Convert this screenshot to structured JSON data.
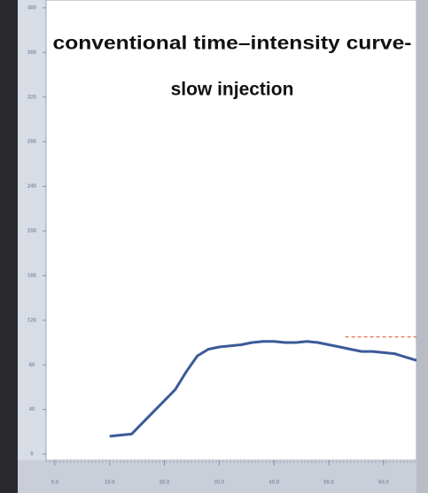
{
  "chart_data": {
    "type": "line",
    "title": [
      "conventional time–intensity curve-",
      "slow injection"
    ],
    "xlim": [
      -1.6,
      66
    ],
    "xticks": [
      {
        "value": 0,
        "label": "0.0"
      },
      {
        "value": 10,
        "label": "10.0"
      },
      {
        "value": 20,
        "label": "20.0"
      },
      {
        "value": 30,
        "label": "30.0"
      },
      {
        "value": 40,
        "label": "40.0"
      },
      {
        "value": 50,
        "label": "50.0"
      },
      {
        "value": 60,
        "label": "60.0"
      }
    ],
    "ylim": [
      -5.5,
      407
    ],
    "yticks": [
      0,
      40,
      80,
      120,
      160,
      200,
      240,
      280,
      320,
      360,
      400
    ],
    "series": [
      {
        "color": "#3b5a98",
        "x": [
          10,
          12,
          14,
          16,
          18,
          20,
          22,
          24,
          26,
          28,
          30,
          32,
          34,
          36,
          38,
          40,
          42,
          44,
          46,
          48,
          50,
          52,
          54,
          56,
          58,
          60,
          62,
          64,
          66
        ],
        "values": [
          16,
          17,
          18,
          28,
          38,
          48,
          58,
          74,
          88,
          94,
          96,
          97,
          98,
          100,
          101,
          101,
          100,
          100,
          101,
          100,
          98,
          96,
          94,
          92,
          92,
          91,
          90,
          87,
          84
        ]
      },
      {
        "color": "#e0603c",
        "dashed": true,
        "x": [
          53,
          66
        ],
        "values": [
          105,
          105
        ]
      }
    ]
  }
}
